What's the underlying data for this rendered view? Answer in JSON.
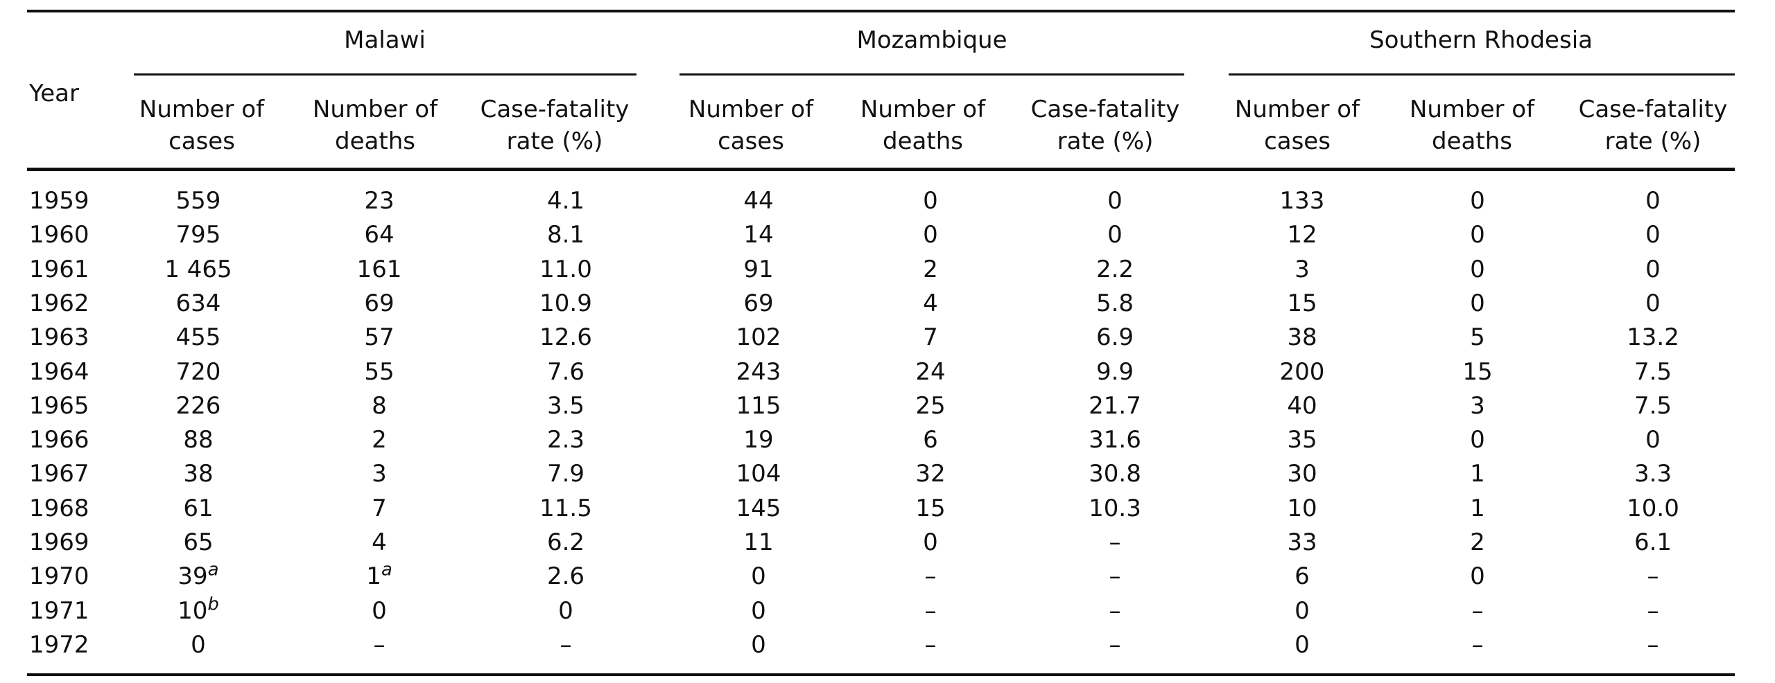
{
  "header": {
    "year": "Year",
    "groups": [
      {
        "name": "Malawi",
        "columns": [
          [
            "Number of",
            "cases"
          ],
          [
            "Number of",
            "deaths"
          ],
          [
            "Case-fatality",
            "rate (%)"
          ]
        ]
      },
      {
        "name": "Mozambique",
        "columns": [
          [
            "Number of",
            "cases"
          ],
          [
            "Number of",
            "deaths"
          ],
          [
            "Case-fatality",
            "rate (%)"
          ]
        ]
      },
      {
        "name": "Southern Rhodesia",
        "columns": [
          [
            "Number of",
            "cases"
          ],
          [
            "Number of",
            "deaths"
          ],
          [
            "Case-fatality",
            "rate (%)"
          ]
        ]
      }
    ]
  },
  "table": {
    "rows": [
      [
        "1959",
        "559",
        "23",
        "4.1",
        "44",
        "0",
        "0",
        "133",
        "0",
        "0"
      ],
      [
        "1960",
        "795",
        "64",
        "8.1",
        "14",
        "0",
        "0",
        "12",
        "0",
        "0"
      ],
      [
        "1961",
        "1 465",
        "161",
        "11.0",
        "91",
        "2",
        "2.2",
        "3",
        "0",
        "0"
      ],
      [
        "1962",
        "634",
        "69",
        "10.9",
        "69",
        "4",
        "5.8",
        "15",
        "0",
        "0"
      ],
      [
        "1963",
        "455",
        "57",
        "12.6",
        "102",
        "7",
        "6.9",
        "38",
        "5",
        "13.2"
      ],
      [
        "1964",
        "720",
        "55",
        "7.6",
        "243",
        "24",
        "9.9",
        "200",
        "15",
        "7.5"
      ],
      [
        "1965",
        "226",
        "8",
        "3.5",
        "115",
        "25",
        "21.7",
        "40",
        "3",
        "7.5"
      ],
      [
        "1966",
        "88",
        "2",
        "2.3",
        "19",
        "6",
        "31.6",
        "35",
        "0",
        "0"
      ],
      [
        "1967",
        "38",
        "3",
        "7.9",
        "104",
        "32",
        "30.8",
        "30",
        "1",
        "3.3"
      ],
      [
        "1968",
        "61",
        "7",
        "11.5",
        "145",
        "15",
        "10.3",
        "10",
        "1",
        "10.0"
      ],
      [
        "1969",
        "65",
        "4",
        "6.2",
        "11",
        "0",
        "–",
        "33",
        "2",
        "6.1"
      ],
      [
        "1970",
        {
          "text": "39",
          "note": "a"
        },
        {
          "text": "1",
          "note": "a"
        },
        "2.6",
        "0",
        "–",
        "–",
        "6",
        "0",
        "–"
      ],
      [
        "1971",
        {
          "text": "10",
          "note": "b"
        },
        "0",
        "0",
        "0",
        "–",
        "–",
        "0",
        "–",
        "–"
      ],
      [
        "1972",
        "0",
        "–",
        "–",
        "0",
        "–",
        "–",
        "0",
        "–",
        "–"
      ]
    ]
  }
}
